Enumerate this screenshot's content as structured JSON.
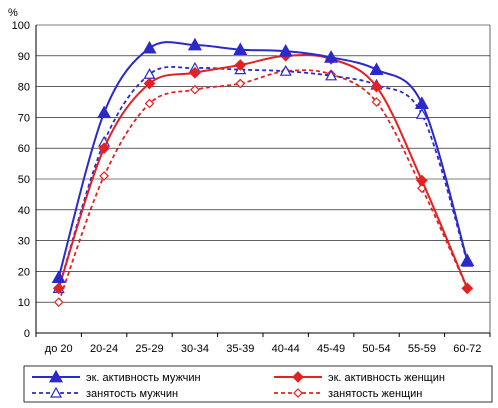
{
  "chart_data": {
    "type": "line",
    "ylabel": "%",
    "ylim": [
      0,
      100
    ],
    "yticks": [
      0,
      10,
      20,
      30,
      40,
      50,
      60,
      70,
      80,
      90,
      100
    ],
    "categories": [
      "до 20",
      "20-24",
      "25-29",
      "30-34",
      "35-39",
      "40-44",
      "45-49",
      "50-54",
      "55-59",
      "60-72"
    ],
    "grid": "horizontal",
    "legend_position": "bottom",
    "series": [
      {
        "name": "эк. активность мужчин",
        "color": "#2a2acc",
        "line": "solid",
        "marker": "triangle-filled",
        "values": [
          18,
          71.5,
          92.5,
          93.5,
          92,
          91.5,
          89.5,
          85.5,
          74.5,
          23.5
        ]
      },
      {
        "name": "эк. активность женщин",
        "color": "#e22222",
        "line": "solid",
        "marker": "diamond-filled",
        "values": [
          14.5,
          60,
          81,
          84.5,
          87,
          90,
          89,
          80,
          49.5,
          14.5
        ]
      },
      {
        "name": "занятость мужчин",
        "color": "#2a2acc",
        "line": "dashed",
        "marker": "triangle-open",
        "values": [
          14.5,
          62,
          84,
          86,
          85.5,
          85,
          83.5,
          80.5,
          71,
          23
        ]
      },
      {
        "name": "занятость женщин",
        "color": "#e22222",
        "line": "dashed",
        "marker": "diamond-open",
        "values": [
          10,
          51,
          74.5,
          79,
          81,
          85,
          84,
          75,
          47,
          14.5
        ]
      }
    ]
  }
}
